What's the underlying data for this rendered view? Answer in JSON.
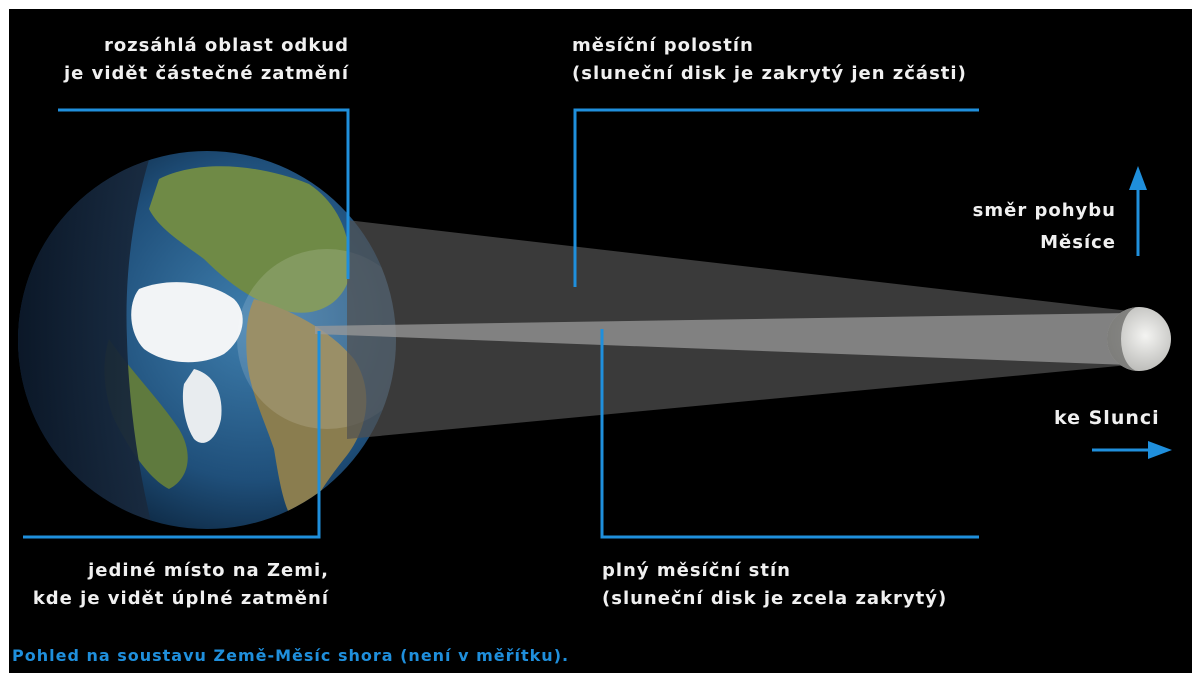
{
  "labels": {
    "partial_region": {
      "line1": "rozsáhlá oblast odkud",
      "line2": "je vidět částečné zatmění"
    },
    "penumbra": {
      "line1": "měsíční polostín",
      "line2": "(sluneční disk je zakrytý jen zčásti)"
    },
    "moon_direction": {
      "line1": "směr pohybu",
      "line2": "Měsíce"
    },
    "to_sun": "ke Slunci",
    "total_spot": {
      "line1": "jediné místo na Zemi,",
      "line2": "kde je vidět úplné zatmění"
    },
    "umbra": {
      "line1": "plný měsíční stín",
      "line2": "(sluneční disk je zcela zakrytý)"
    }
  },
  "caption": "Pohled na soustavu Země-Měsíc shora (není v měřítku).",
  "colors": {
    "background": "#000000",
    "leader_lines": "#1f8fdc",
    "arrows": "#1f8fdc",
    "label_text": "#f0f0f0",
    "caption_text": "#1f8fdc",
    "penumbra_cone": "#505050",
    "umbra_cone": "#9a9a9a"
  }
}
